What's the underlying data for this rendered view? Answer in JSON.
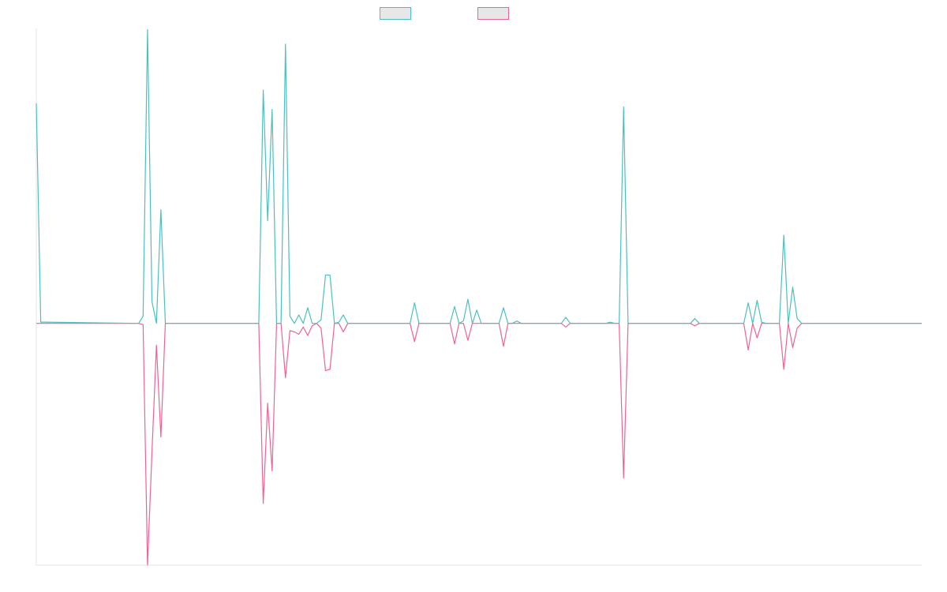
{
  "chart_data": {
    "type": "line",
    "title": "",
    "xlabel": "",
    "ylabel": "",
    "grid": false,
    "legend_position": "top-center",
    "x_count": 200,
    "ylim": [
      -1.0,
      1.22
    ],
    "series": [
      {
        "name": "",
        "color": "#4bc0c0",
        "points": [
          [
            0,
            0.91
          ],
          [
            1,
            0.005
          ],
          [
            2,
            0.005
          ],
          [
            23,
            0
          ],
          [
            24,
            0.03
          ],
          [
            25,
            1.215
          ],
          [
            26,
            0.09
          ],
          [
            27,
            0
          ],
          [
            28,
            0.47
          ],
          [
            29,
            0
          ],
          [
            50,
            0
          ],
          [
            51,
            0.965
          ],
          [
            52,
            0.425
          ],
          [
            53,
            0.885
          ],
          [
            54,
            0
          ],
          [
            55,
            0
          ],
          [
            56,
            1.155
          ],
          [
            57,
            0.03
          ],
          [
            58,
            0
          ],
          [
            59,
            0.035
          ],
          [
            60,
            0
          ],
          [
            61,
            0.065
          ],
          [
            62,
            0
          ],
          [
            63,
            0
          ],
          [
            64,
            0.015
          ],
          [
            65,
            0.2
          ],
          [
            66,
            0.2
          ],
          [
            67,
            0
          ],
          [
            68,
            0.005
          ],
          [
            69,
            0.035
          ],
          [
            70,
            0
          ],
          [
            84,
            0
          ],
          [
            85,
            0.085
          ],
          [
            86,
            0
          ],
          [
            93,
            0
          ],
          [
            94,
            0.07
          ],
          [
            95,
            0
          ],
          [
            96,
            0.01
          ],
          [
            97,
            0.1
          ],
          [
            98,
            0
          ],
          [
            99,
            0.055
          ],
          [
            100,
            0
          ],
          [
            104,
            0
          ],
          [
            105,
            0.065
          ],
          [
            106,
            0
          ],
          [
            107,
            0
          ],
          [
            108,
            0.01
          ],
          [
            109,
            0
          ],
          [
            118,
            0
          ],
          [
            119,
            0.025
          ],
          [
            120,
            0
          ],
          [
            128,
            0
          ],
          [
            129,
            0.005
          ],
          [
            130,
            0
          ],
          [
            131,
            0
          ],
          [
            132,
            0.895
          ],
          [
            133,
            0
          ],
          [
            147,
            0
          ],
          [
            148,
            0.02
          ],
          [
            149,
            0
          ],
          [
            159,
            0
          ],
          [
            160,
            0.085
          ],
          [
            161,
            0
          ],
          [
            162,
            0.095
          ],
          [
            163,
            0.005
          ],
          [
            164,
            0
          ],
          [
            167,
            0
          ],
          [
            168,
            0.365
          ],
          [
            169,
            0
          ],
          [
            170,
            0.15
          ],
          [
            171,
            0.02
          ],
          [
            172,
            0
          ],
          [
            199,
            0
          ]
        ]
      },
      {
        "name": "",
        "color": "#f06292",
        "points": [
          [
            0,
            0
          ],
          [
            23,
            0
          ],
          [
            24,
            -0.005
          ],
          [
            25,
            -1.0
          ],
          [
            26,
            -0.53
          ],
          [
            27,
            -0.09
          ],
          [
            28,
            -0.47
          ],
          [
            29,
            0
          ],
          [
            50,
            0
          ],
          [
            51,
            -0.745
          ],
          [
            52,
            -0.33
          ],
          [
            53,
            -0.61
          ],
          [
            54,
            0
          ],
          [
            55,
            0
          ],
          [
            56,
            -0.225
          ],
          [
            57,
            -0.03
          ],
          [
            58,
            -0.035
          ],
          [
            59,
            -0.045
          ],
          [
            60,
            -0.015
          ],
          [
            61,
            -0.05
          ],
          [
            62,
            -0.01
          ],
          [
            63,
            0
          ],
          [
            64,
            -0.02
          ],
          [
            65,
            -0.195
          ],
          [
            66,
            -0.19
          ],
          [
            67,
            0
          ],
          [
            68,
            0
          ],
          [
            69,
            -0.035
          ],
          [
            70,
            0
          ],
          [
            84,
            0
          ],
          [
            85,
            -0.075
          ],
          [
            86,
            0
          ],
          [
            93,
            0
          ],
          [
            94,
            -0.085
          ],
          [
            95,
            0
          ],
          [
            96,
            0
          ],
          [
            97,
            -0.07
          ],
          [
            98,
            0
          ],
          [
            99,
            0
          ],
          [
            100,
            0
          ],
          [
            104,
            0
          ],
          [
            105,
            -0.095
          ],
          [
            106,
            0
          ],
          [
            107,
            0
          ],
          [
            108,
            0
          ],
          [
            118,
            0
          ],
          [
            119,
            -0.015
          ],
          [
            120,
            0
          ],
          [
            131,
            0
          ],
          [
            132,
            -0.64
          ],
          [
            133,
            0
          ],
          [
            147,
            0
          ],
          [
            148,
            -0.01
          ],
          [
            149,
            0
          ],
          [
            159,
            0
          ],
          [
            160,
            -0.11
          ],
          [
            161,
            0
          ],
          [
            162,
            -0.06
          ],
          [
            163,
            0
          ],
          [
            164,
            0
          ],
          [
            167,
            0
          ],
          [
            168,
            -0.19
          ],
          [
            169,
            0
          ],
          [
            170,
            -0.1
          ],
          [
            171,
            -0.02
          ],
          [
            172,
            0
          ],
          [
            199,
            0
          ]
        ]
      }
    ]
  }
}
